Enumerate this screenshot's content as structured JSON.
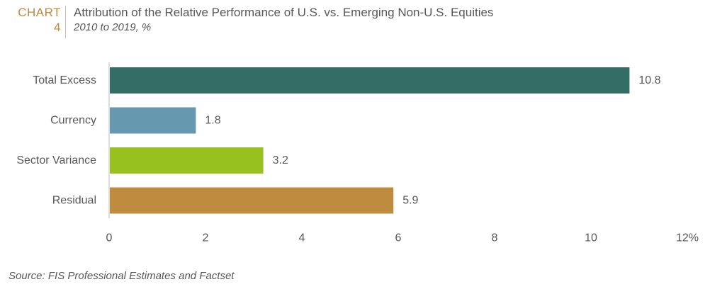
{
  "header": {
    "chart_word": "CHART",
    "chart_number": "4",
    "title": "Attribution of the Relative Performance of U.S. vs. Emerging Non-U.S. Equities",
    "subtitle": "2010 to 2019, %"
  },
  "source": "Source: FIS Professional Estimates and Factset",
  "chart_data": {
    "type": "bar",
    "orientation": "horizontal",
    "categories": [
      "Total Excess",
      "Currency",
      "Sector Variance",
      "Residual"
    ],
    "values": [
      10.8,
      1.8,
      3.2,
      5.9
    ],
    "data_labels": [
      "10.8",
      "1.8",
      "3.2",
      "5.9"
    ],
    "colors": [
      "#346c66",
      "#6699af",
      "#97c11f",
      "#bf8b3e"
    ],
    "xlim": [
      0,
      12
    ],
    "x_ticks": [
      0,
      2,
      4,
      6,
      8,
      10,
      12
    ],
    "x_tick_labels": [
      "0",
      "2",
      "4",
      "6",
      "8",
      "10",
      "12%"
    ],
    "grid": false,
    "legend": "none"
  }
}
